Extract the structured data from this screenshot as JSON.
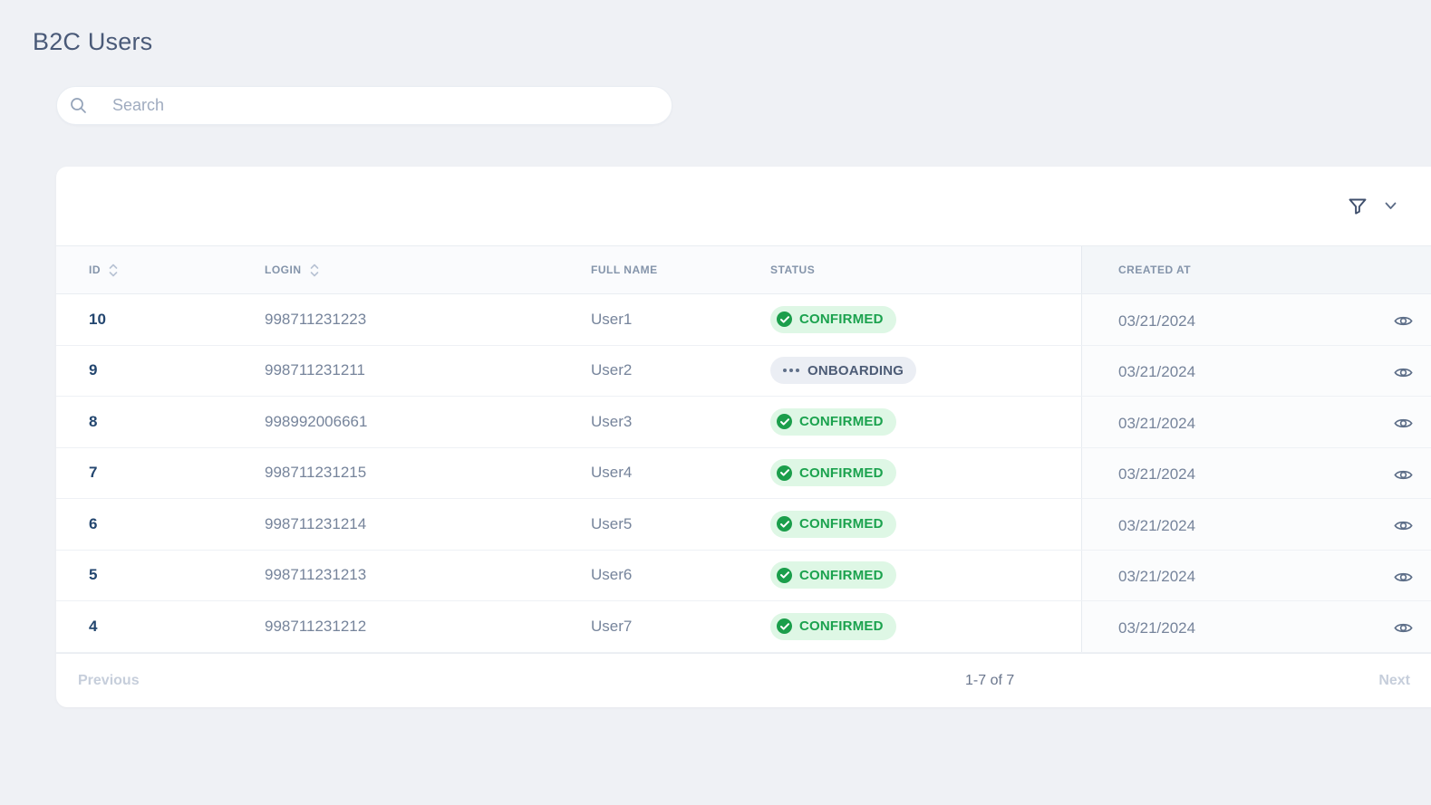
{
  "page": {
    "title": "B2C Users",
    "background_color": "#eff1f5"
  },
  "search": {
    "placeholder": "Search",
    "value": "",
    "icon": "search-icon"
  },
  "toolbar": {
    "filter_icon": "filter-icon",
    "expand_icon": "chevron-down-icon"
  },
  "table": {
    "columns": [
      {
        "key": "id",
        "label": "ID",
        "sortable": true
      },
      {
        "key": "login",
        "label": "LOGIN",
        "sortable": true
      },
      {
        "key": "full_name",
        "label": "FULL NAME",
        "sortable": false
      },
      {
        "key": "status",
        "label": "STATUS",
        "sortable": false
      },
      {
        "key": "created_at",
        "label": "CREATED AT",
        "sortable": false
      }
    ],
    "rows": [
      {
        "id": "10",
        "login": "998711231223",
        "full_name": "User1",
        "status": "CONFIRMED",
        "created_at": "03/21/2024"
      },
      {
        "id": "9",
        "login": "998711231211",
        "full_name": "User2",
        "status": "ONBOARDING",
        "created_at": "03/21/2024"
      },
      {
        "id": "8",
        "login": "998992006661",
        "full_name": "User3",
        "status": "CONFIRMED",
        "created_at": "03/21/2024"
      },
      {
        "id": "7",
        "login": "998711231215",
        "full_name": "User4",
        "status": "CONFIRMED",
        "created_at": "03/21/2024"
      },
      {
        "id": "6",
        "login": "998711231214",
        "full_name": "User5",
        "status": "CONFIRMED",
        "created_at": "03/21/2024"
      },
      {
        "id": "5",
        "login": "998711231213",
        "full_name": "User6",
        "status": "CONFIRMED",
        "created_at": "03/21/2024"
      },
      {
        "id": "4",
        "login": "998711231212",
        "full_name": "User7",
        "status": "CONFIRMED",
        "created_at": "03/21/2024"
      }
    ],
    "row_action_icon": "eye-icon",
    "sort_icon": "sort-icon"
  },
  "status_styles": {
    "CONFIRMED": {
      "background": "#def7e5",
      "text_color": "#1ba24e",
      "icon": "check-circle-icon",
      "icon_color": "#1b9e4b"
    },
    "ONBOARDING": {
      "background": "#ebeef4",
      "text_color": "#4d5c76",
      "icon": "ellipsis-icon",
      "icon_color": "#5f7089"
    }
  },
  "pagination": {
    "previous_label": "Previous",
    "range_text": "1-7 of 7",
    "next_label": "Next"
  }
}
